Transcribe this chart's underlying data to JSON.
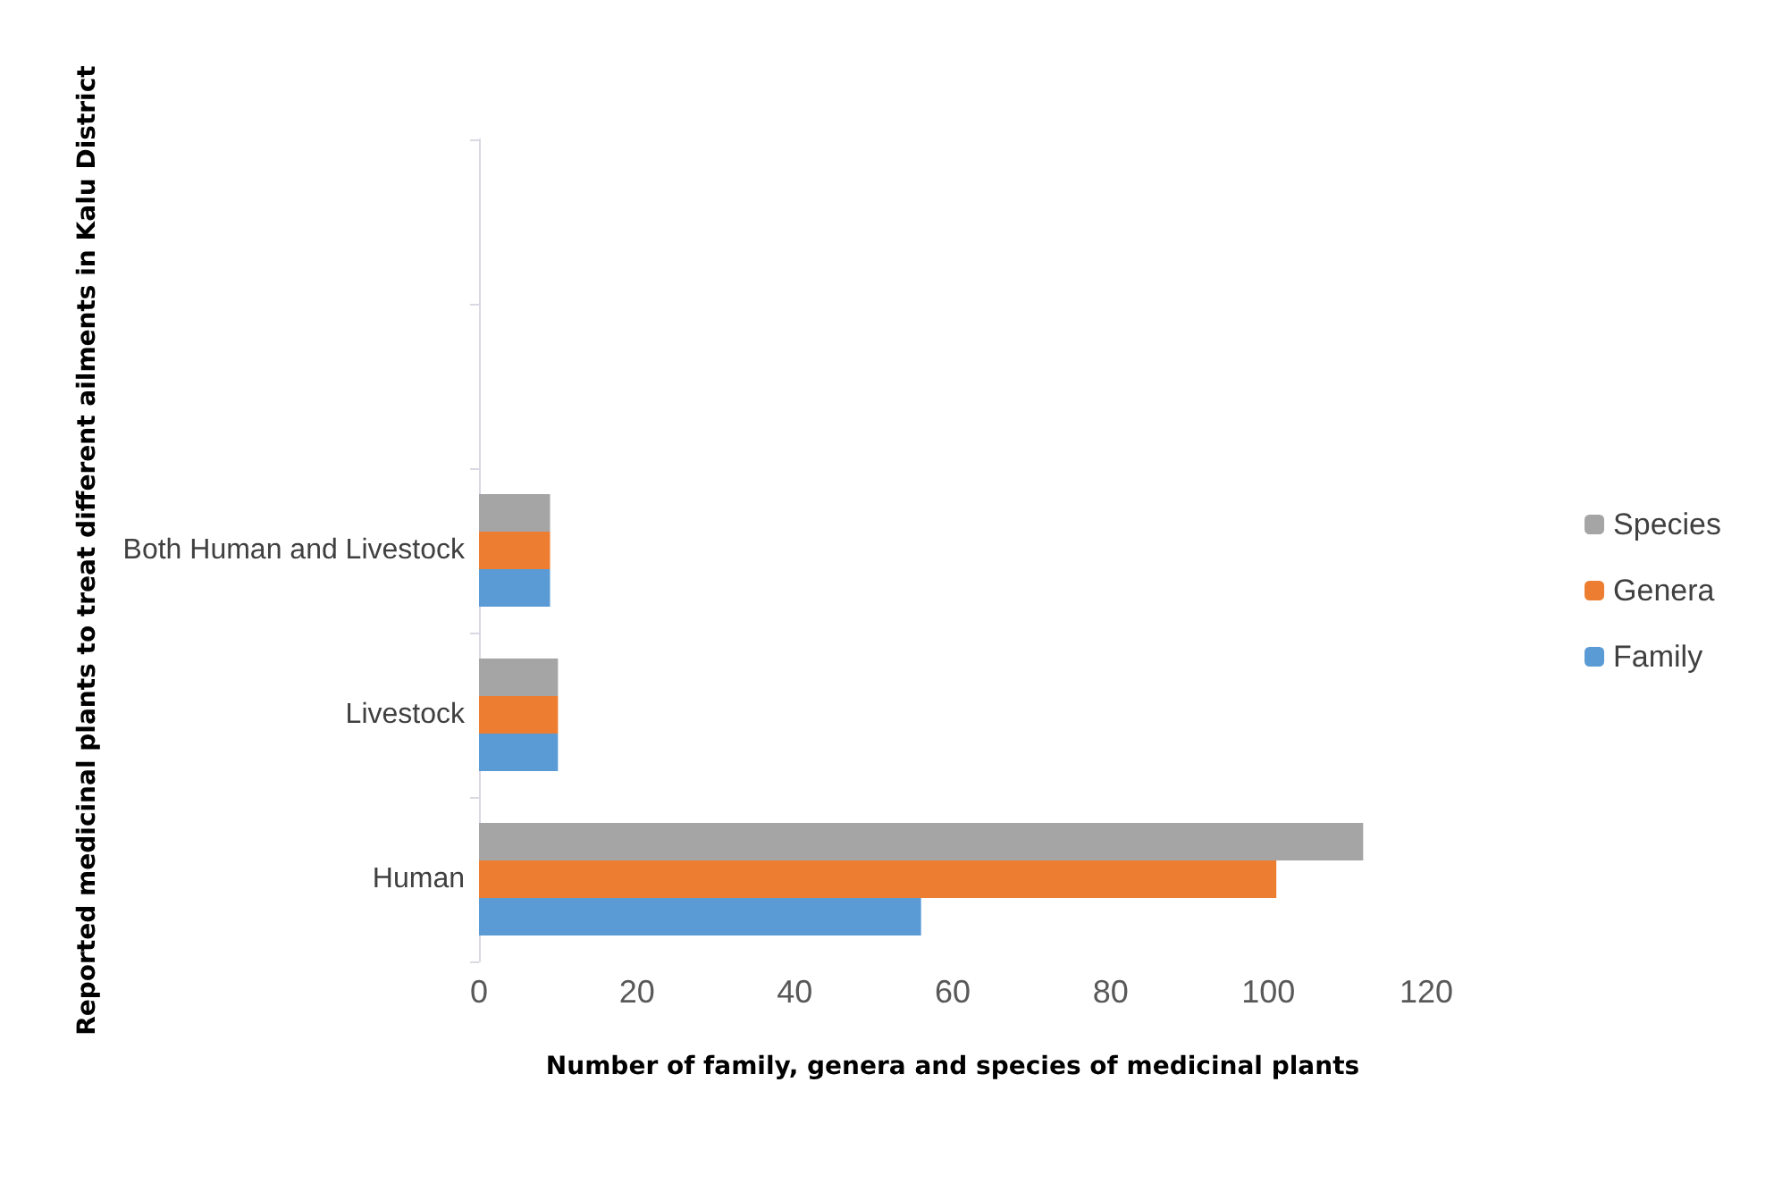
{
  "chart_data": {
    "type": "bar",
    "orientation": "horizontal",
    "xlabel": "Number of family, genera and species of medicinal plants",
    "ylabel": "Reported medicinal plants to treat different ailments in Kalu District",
    "categories": [
      null,
      null,
      "Both Human and Livestock",
      "Livestock",
      "Human"
    ],
    "series": [
      {
        "name": "Species",
        "color": "#a5a5a5",
        "values": [
          null,
          null,
          9,
          10,
          112
        ]
      },
      {
        "name": "Genera",
        "color": "#ed7d31",
        "values": [
          null,
          null,
          9,
          10,
          101
        ]
      },
      {
        "name": "Family",
        "color": "#5b9bd5",
        "values": [
          null,
          null,
          9,
          10,
          56
        ]
      }
    ],
    "xlim": [
      0,
      120
    ],
    "xticks": [
      0,
      20,
      40,
      60,
      80,
      100,
      120
    ],
    "grid": false,
    "legend": "right"
  }
}
